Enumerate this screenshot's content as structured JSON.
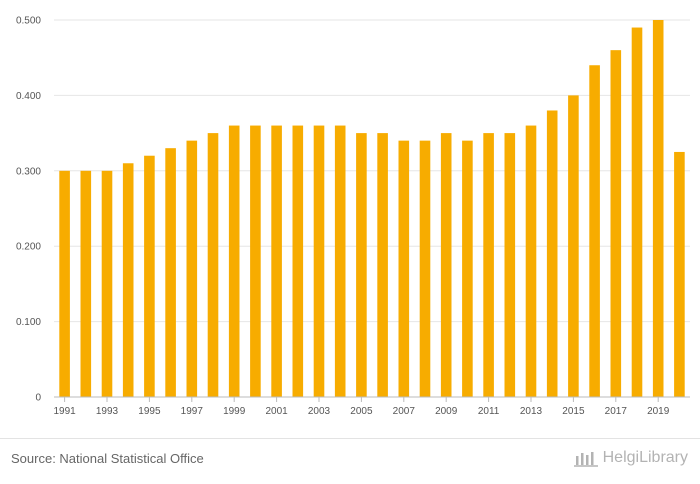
{
  "chart_data": {
    "type": "bar",
    "title": "",
    "xlabel": "",
    "ylabel": "",
    "categories": [
      "1991",
      "1992",
      "1993",
      "1994",
      "1995",
      "1996",
      "1997",
      "1998",
      "1999",
      "2000",
      "2001",
      "2002",
      "2003",
      "2004",
      "2005",
      "2006",
      "2007",
      "2008",
      "2009",
      "2010",
      "2011",
      "2012",
      "2013",
      "2014",
      "2015",
      "2016",
      "2017",
      "2018",
      "2019",
      "2020"
    ],
    "x_tick_labels": [
      "1991",
      "1993",
      "1995",
      "1997",
      "1999",
      "2001",
      "2003",
      "2005",
      "2007",
      "2009",
      "2011",
      "2013",
      "2015",
      "2017",
      "2019"
    ],
    "values": [
      0.3,
      0.3,
      0.3,
      0.31,
      0.32,
      0.33,
      0.34,
      0.35,
      0.36,
      0.36,
      0.36,
      0.36,
      0.36,
      0.36,
      0.35,
      0.35,
      0.34,
      0.34,
      0.35,
      0.34,
      0.35,
      0.35,
      0.36,
      0.38,
      0.4,
      0.44,
      0.46,
      0.49,
      0.5,
      0.325
    ],
    "ylim": [
      0,
      0.5
    ],
    "y_ticks": [
      0,
      0.1,
      0.2,
      0.3,
      0.4,
      0.5
    ],
    "y_tick_labels": [
      "0",
      "0.100",
      "0.200",
      "0.300",
      "0.400",
      "0.500"
    ],
    "bar_color": "#f7ac00",
    "grid": true
  },
  "footer": {
    "source": "Source: National Statistical Office",
    "logo_text": "HelgiLibrary"
  }
}
